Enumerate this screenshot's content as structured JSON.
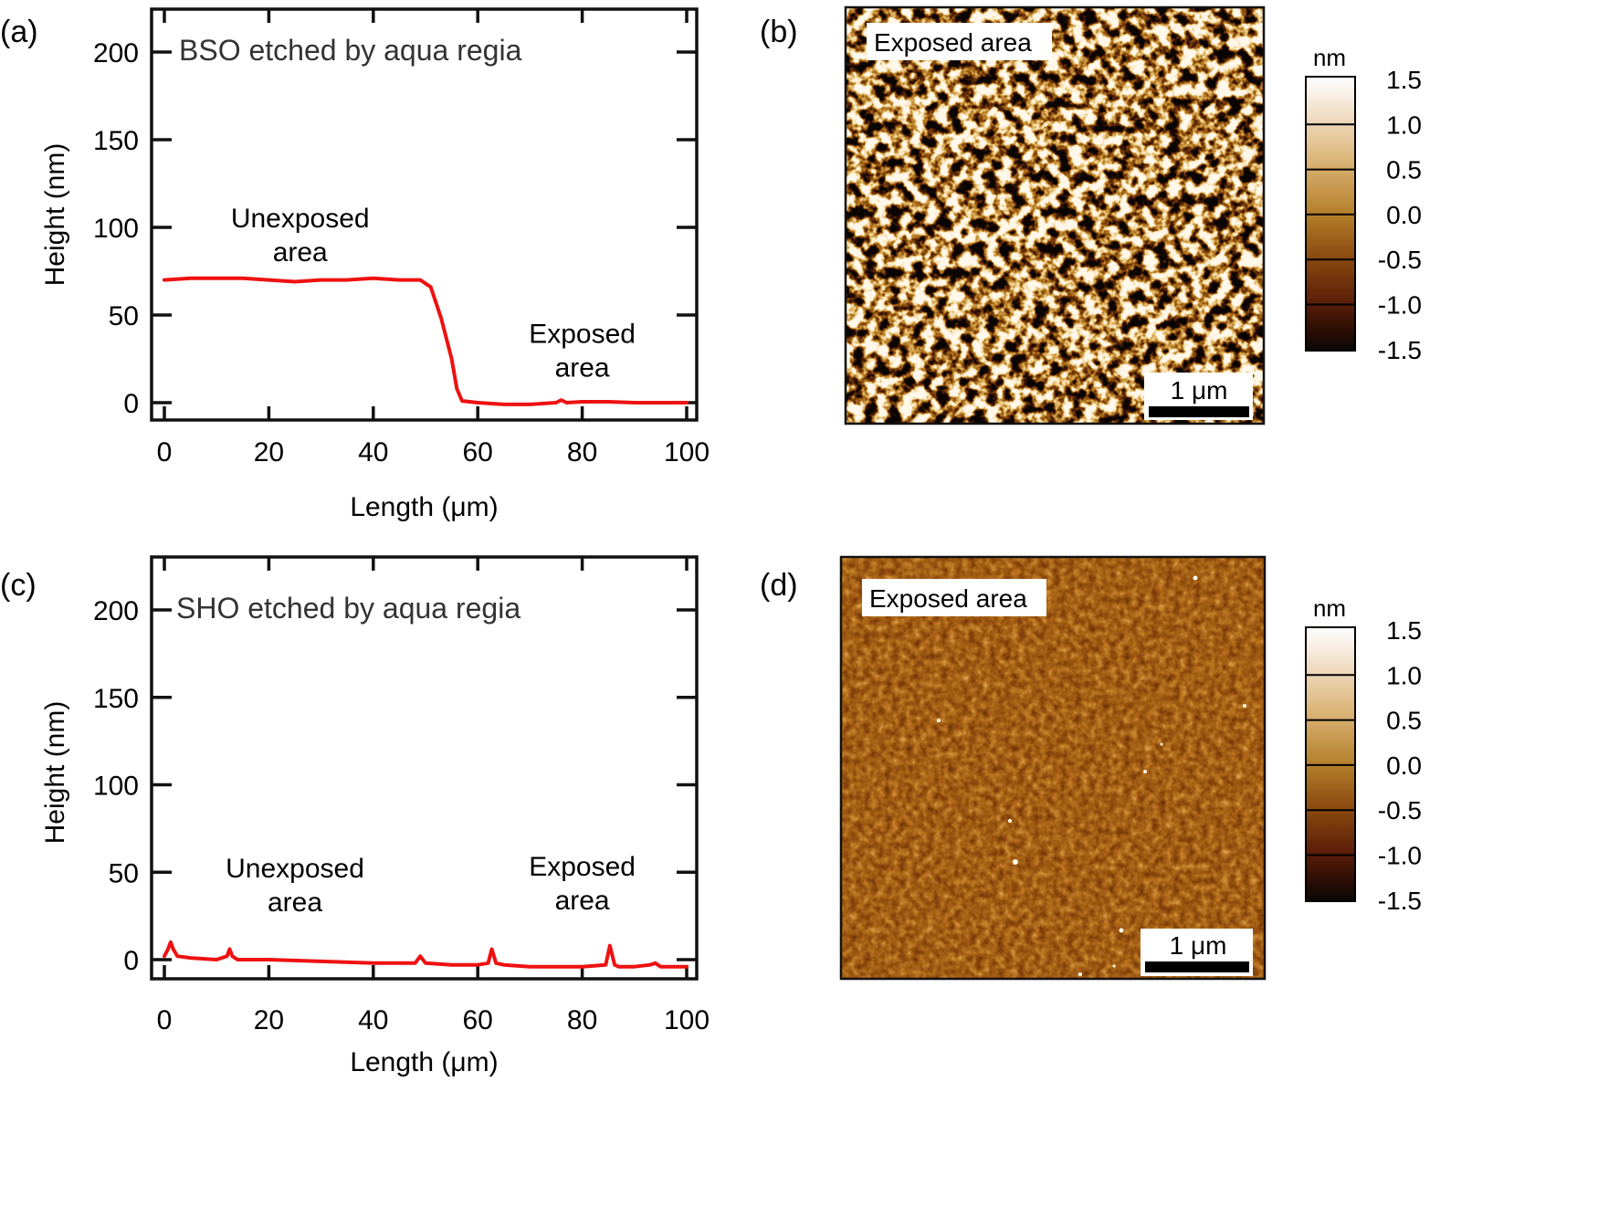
{
  "colors": {
    "trace": "#ee1111",
    "axis": "#111111",
    "colorbar_stops": [
      "#0a0705",
      "#2a0d05",
      "#5c1e08",
      "#8a4a10",
      "#b57f2a",
      "#dcb67a",
      "#f7ece0",
      "#ffffff"
    ]
  },
  "chart_data": [
    {
      "panel_label": "(a)",
      "type": "line",
      "title": "BSO etched by aqua regia",
      "xlabel": "Length (μm)",
      "ylabel": "Height (nm)",
      "xlim": [
        -3,
        101.5
      ],
      "ylim": [
        -10,
        225
      ],
      "xticks": [
        0,
        20,
        40,
        60,
        80,
        100
      ],
      "yticks": [
        0,
        50,
        100,
        150,
        200
      ],
      "annotations": [
        {
          "lines": [
            "Unexposed",
            "area"
          ],
          "x": 26,
          "y": 100
        },
        {
          "lines": [
            "Exposed",
            "area"
          ],
          "x": 80,
          "y": 34
        }
      ],
      "series": [
        {
          "name": "height profile",
          "x": [
            0,
            5,
            10,
            15,
            20,
            25,
            30,
            35,
            40,
            45,
            49,
            51,
            53,
            55,
            56,
            57,
            60,
            65,
            70,
            75,
            76,
            77,
            80,
            85,
            90,
            95,
            100
          ],
          "y": [
            70,
            71,
            71,
            71,
            70,
            69,
            70,
            70,
            71,
            70,
            70,
            66,
            48,
            25,
            8,
            1,
            0,
            -1,
            -1,
            0,
            1.5,
            0,
            0.5,
            0.5,
            0,
            0,
            0
          ]
        }
      ]
    },
    {
      "panel_label": "(c)",
      "type": "line",
      "title": "SHO etched by aqua regia",
      "xlabel": "Length (μm)",
      "ylabel": "Height (nm)",
      "xlim": [
        -3,
        101.5
      ],
      "ylim": [
        -10,
        225
      ],
      "xticks": [
        0,
        20,
        40,
        60,
        80,
        100
      ],
      "yticks": [
        0,
        50,
        100,
        150,
        200
      ],
      "annotations": [
        {
          "lines": [
            "Unexposed",
            "area"
          ],
          "x": 25,
          "y": 47
        },
        {
          "lines": [
            "Exposed",
            "area"
          ],
          "x": 80,
          "y": 48
        }
      ],
      "series": [
        {
          "name": "height profile",
          "x": [
            0,
            0.7,
            1.2,
            1.7,
            2.5,
            5,
            10,
            12,
            12.5,
            13,
            14,
            20,
            30,
            40,
            48,
            49,
            49.5,
            50,
            55,
            60,
            62,
            62.7,
            63.5,
            65,
            70,
            80,
            84.5,
            85.3,
            86.2,
            87,
            90,
            93,
            94,
            95,
            100
          ],
          "y": [
            2,
            6,
            10,
            6,
            2,
            1,
            0,
            2,
            6,
            2,
            0,
            0,
            -1,
            -2,
            -2,
            2,
            0,
            -2,
            -3,
            -3,
            -2,
            6,
            -2,
            -3,
            -4,
            -4,
            -3,
            8,
            -3,
            -4,
            -4,
            -3,
            -2,
            -4,
            -4
          ]
        }
      ]
    }
  ],
  "afm_panels": [
    {
      "panel_label": "(b)",
      "tag": "Exposed area",
      "scalebar_label": "1 μm",
      "colorbar_unit": "nm",
      "colorbar_ticks": [
        "1.5",
        "1.0",
        "0.5",
        "0.0",
        "-0.5",
        "-1.0",
        "-1.5"
      ],
      "texture": "rough"
    },
    {
      "panel_label": "(d)",
      "tag": "Exposed area",
      "scalebar_label": "1 μm",
      "colorbar_unit": "nm",
      "colorbar_ticks": [
        "1.5",
        "1.0",
        "0.5",
        "0.0",
        "-0.5",
        "-1.0",
        "-1.5"
      ],
      "texture": "smooth"
    }
  ]
}
